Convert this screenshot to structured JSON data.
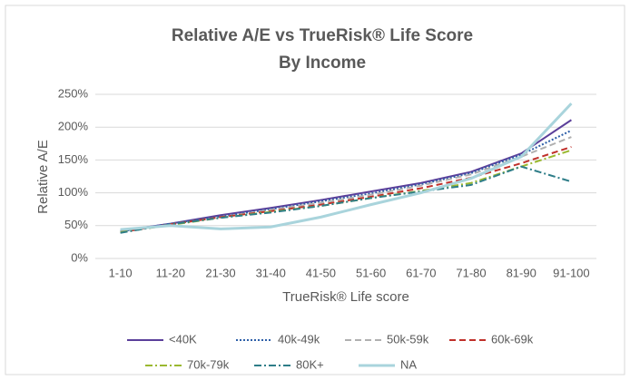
{
  "chart_data": {
    "type": "line",
    "title": "Relative A/E vs TrueRisk® Life Score",
    "subtitle": "By Income",
    "x_label": "TrueRisk® Life score",
    "y_label": "Relative A/E",
    "categories": [
      "1-10",
      "11-20",
      "21-30",
      "31-40",
      "41-50",
      "51-60",
      "61-70",
      "71-80",
      "81-90",
      "91-100"
    ],
    "ylim": [
      0,
      250
    ],
    "yticks": [
      {
        "value": 0,
        "label": "0%"
      },
      {
        "value": 50,
        "label": "50%"
      },
      {
        "value": 100,
        "label": "100%"
      },
      {
        "value": 150,
        "label": "150%"
      },
      {
        "value": 200,
        "label": "200%"
      },
      {
        "value": 250,
        "label": "250%"
      }
    ],
    "grid": true,
    "legend": "bottom",
    "series": [
      {
        "name": "<40K",
        "color": "#5b3f9a",
        "dash": "solid",
        "values": [
          42,
          53,
          66,
          77,
          89,
          102,
          115,
          132,
          160,
          211
        ]
      },
      {
        "name": "40k-49k",
        "color": "#2e5fa8",
        "dash": "dotted",
        "values": [
          41,
          53,
          64,
          75,
          87,
          99,
          113,
          130,
          158,
          195
        ]
      },
      {
        "name": "50k-59k",
        "color": "#b0b0b0",
        "dash": "dashed",
        "values": [
          40,
          52,
          63,
          74,
          85,
          97,
          111,
          128,
          155,
          185
        ]
      },
      {
        "name": "60k-69k",
        "color": "#c0302a",
        "dash": "dashed",
        "values": [
          40,
          52,
          63,
          72,
          82,
          94,
          107,
          123,
          145,
          170
        ]
      },
      {
        "name": "70k-79k",
        "color": "#9ab830",
        "dash": "dashdot",
        "values": [
          40,
          51,
          62,
          71,
          80,
          92,
          103,
          115,
          140,
          165
        ]
      },
      {
        "name": "80K+",
        "color": "#2e7d88",
        "dash": "dashdot",
        "values": [
          39,
          52,
          62,
          70,
          80,
          92,
          102,
          112,
          140,
          117
        ]
      },
      {
        "name": "NA",
        "color": "#a9d4dc",
        "dash": "solid",
        "values": [
          44,
          50,
          45,
          48,
          63,
          82,
          100,
          122,
          155,
          236
        ]
      }
    ]
  }
}
